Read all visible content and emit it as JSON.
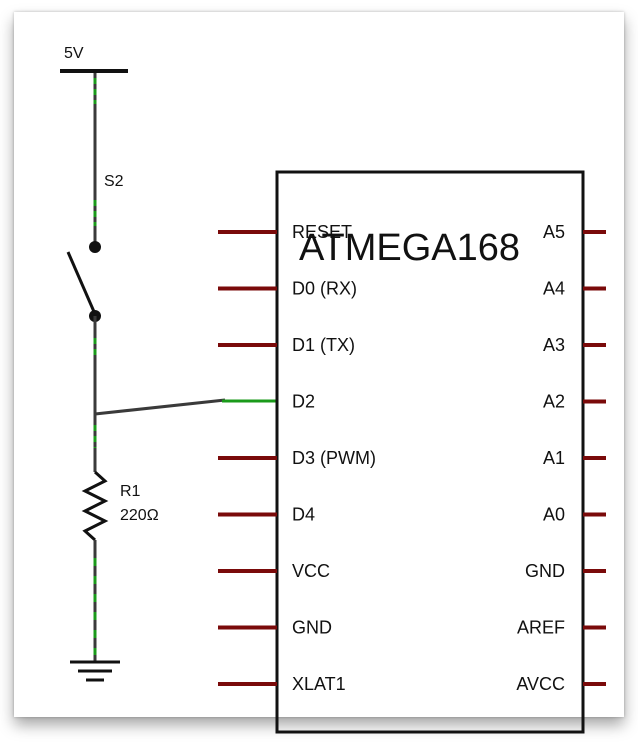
{
  "supply": {
    "label": "5V"
  },
  "switch": {
    "label": "S2"
  },
  "resistor": {
    "name": "R1",
    "value": "220Ω"
  },
  "chip": {
    "title": "ATMEGA168",
    "left_pins": [
      "RESET",
      "D0 (RX)",
      "D1 (TX)",
      "D2",
      "D3 (PWM)",
      "D4",
      "VCC",
      "GND",
      "XLAT1"
    ],
    "right_pins": [
      "A5",
      "A4",
      "A3",
      "A2",
      "A1",
      "A0",
      "GND",
      "AREF",
      "AVCC"
    ]
  },
  "colors": {
    "wire": "#3a3a3a",
    "wire_highlight": "#1a9a1a",
    "pin": "#7a0a0a",
    "text": "#111111"
  }
}
